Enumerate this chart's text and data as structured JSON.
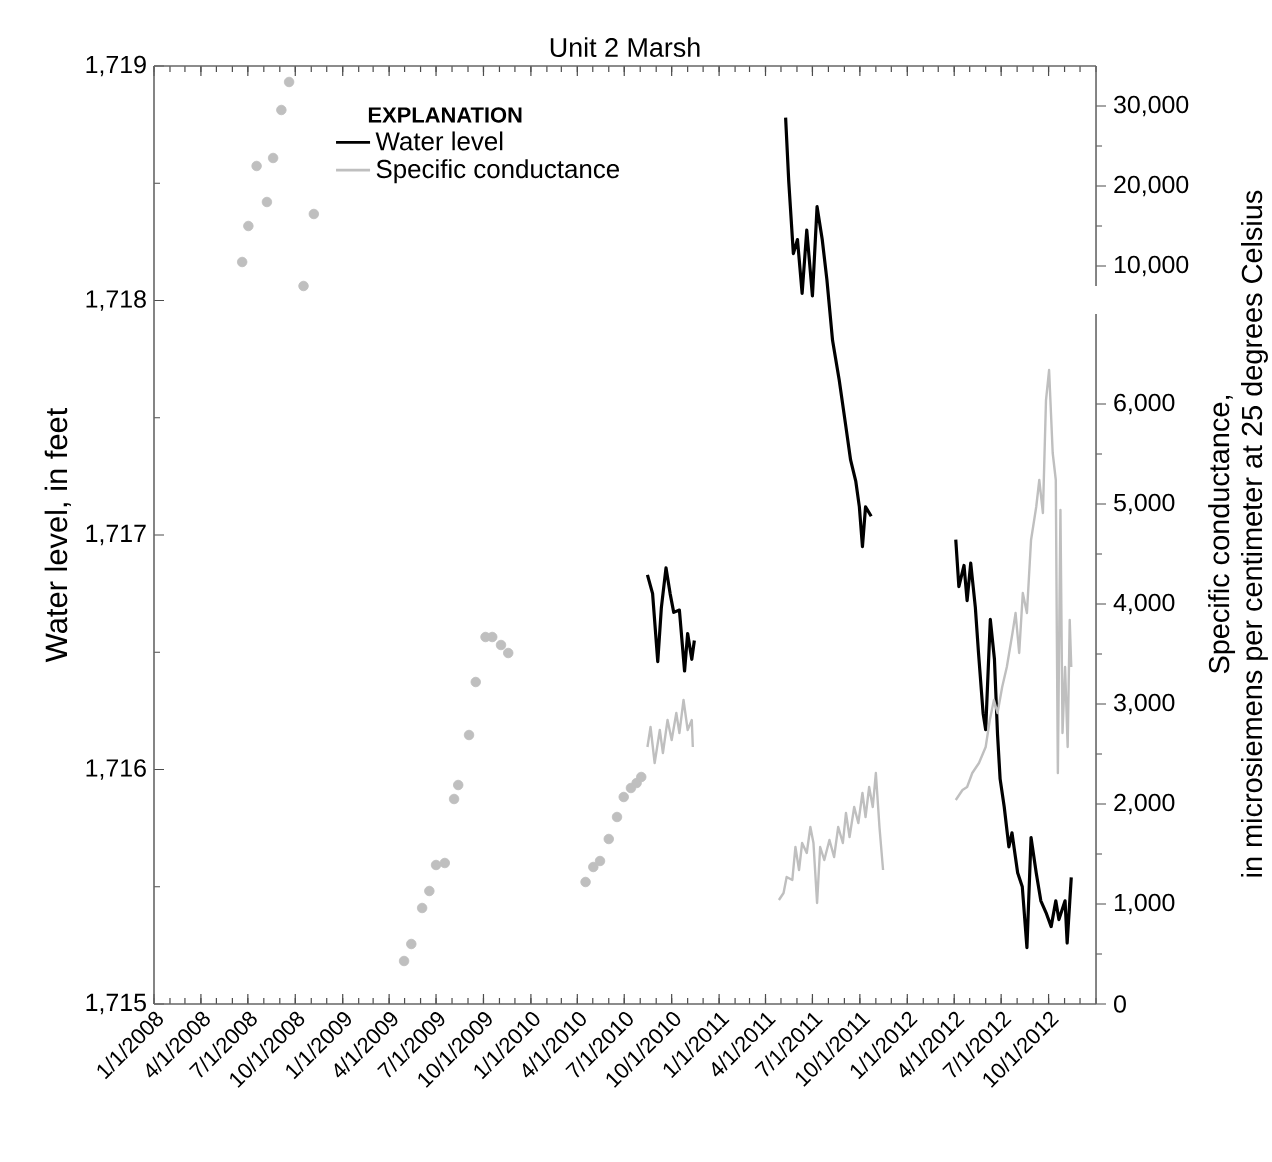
{
  "chart_data": {
    "type": "line",
    "title": "Unit 2 Marsh",
    "ylabel": "Water level, in feet",
    "y2label": "Specific conductance, in microsiemens per centimeter at 25 degrees Celsius",
    "legend_title": "EXPLANATION",
    "legend": "top left",
    "xlim": [
      "2008-01-01",
      "2013-01-01"
    ],
    "xticks": [
      {
        "value": "2008-01-01",
        "label": "1/1/2008"
      },
      {
        "value": "2008-04-01",
        "label": "4/1/2008"
      },
      {
        "value": "2008-07-01",
        "label": "7/1/2008"
      },
      {
        "value": "2008-10-01",
        "label": "10/1/2008"
      },
      {
        "value": "2009-01-01",
        "label": "1/1/2009"
      },
      {
        "value": "2009-04-01",
        "label": "4/1/2009"
      },
      {
        "value": "2009-07-01",
        "label": "7/1/2009"
      },
      {
        "value": "2009-10-01",
        "label": "10/1/2009"
      },
      {
        "value": "2010-01-01",
        "label": "1/1/2010"
      },
      {
        "value": "2010-04-01",
        "label": "4/1/2010"
      },
      {
        "value": "2010-07-01",
        "label": "7/1/2010"
      },
      {
        "value": "2010-10-01",
        "label": "10/1/2010"
      },
      {
        "value": "2011-01-01",
        "label": "1/1/2011"
      },
      {
        "value": "2011-04-01",
        "label": "4/1/2011"
      },
      {
        "value": "2011-07-01",
        "label": "7/1/2011"
      },
      {
        "value": "2011-10-01",
        "label": "10/1/2011"
      },
      {
        "value": "2012-01-01",
        "label": "1/1/2012"
      },
      {
        "value": "2012-04-01",
        "label": "4/1/2012"
      },
      {
        "value": "2012-07-01",
        "label": "7/1/2012"
      },
      {
        "value": "2012-10-01",
        "label": "10/1/2012"
      }
    ],
    "ylim": [
      1715,
      1719
    ],
    "yticks": [
      {
        "value": 1715,
        "label": "1,715"
      },
      {
        "value": 1716,
        "label": "1,716"
      },
      {
        "value": 1717,
        "label": "1,717"
      },
      {
        "value": 1718,
        "label": "1,718"
      },
      {
        "value": 1719,
        "label": "1,719"
      }
    ],
    "y2lim": [
      0,
      6900
    ],
    "y2ticks": [
      0,
      {
        "value": 1000,
        "label": "1,000"
      },
      {
        "value": 2000,
        "label": "2,000"
      },
      {
        "value": 3000,
        "label": "3,000"
      },
      {
        "value": 4000,
        "label": "4,000"
      },
      {
        "value": 5000,
        "label": "5,000"
      },
      {
        "value": 6000,
        "label": "6,000"
      }
    ],
    "y3lim": [
      7500,
      35000
    ],
    "y3ticks": [
      {
        "value": 10000,
        "label": "10,000"
      },
      {
        "value": 20000,
        "label": "20,000"
      },
      {
        "value": 30000,
        "label": "30,000"
      }
    ],
    "series": [
      {
        "name": "Water level",
        "color": "#000000",
        "x": [
          "2010-08-15",
          "2010-08-25",
          "2010-09-04",
          "2010-09-11",
          "2010-09-20",
          "2010-09-28",
          "2010-10-05",
          "2010-10-16",
          "2010-10-26",
          "2010-11-01",
          "2010-11-09",
          "2010-11-14",
          "2011-01-01",
          "2011-05-10",
          "2011-05-16",
          "2011-05-25",
          "2011-06-02",
          "2011-06-11",
          "2011-06-20",
          "2011-07-01",
          "2011-07-10",
          "2011-07-20",
          "2011-07-29",
          "2011-08-09",
          "2011-08-22",
          "2011-09-04",
          "2011-09-13",
          "2011-09-23",
          "2011-09-30",
          "2011-10-06",
          "2011-10-12",
          "2011-10-23",
          "2012-01-01",
          "2012-04-04",
          "2012-04-10",
          "2012-04-20",
          "2012-04-26",
          "2012-05-03",
          "2012-05-12",
          "2012-05-18",
          "2012-05-27",
          "2012-06-01",
          "2012-06-10",
          "2012-06-18",
          "2012-06-24",
          "2012-06-29",
          "2012-07-07",
          "2012-07-16",
          "2012-07-22",
          "2012-08-02",
          "2012-08-11",
          "2012-08-20",
          "2012-08-28",
          "2012-09-07",
          "2012-09-16",
          "2012-09-26",
          "2012-10-06",
          "2012-10-15",
          "2012-10-21",
          "2012-11-02",
          "2012-11-06",
          "2012-11-14"
        ],
        "values": [
          1716.83,
          1716.75,
          1716.46,
          1716.69,
          1716.86,
          1716.75,
          1716.67,
          1716.68,
          1716.42,
          1716.58,
          1716.47,
          1716.55,
          null,
          1718.78,
          1718.51,
          1718.2,
          1718.26,
          1718.03,
          1718.3,
          1718.02,
          1718.4,
          1718.26,
          1718.09,
          1717.83,
          1717.66,
          1717.46,
          1717.32,
          1717.23,
          1717.12,
          1716.95,
          1717.12,
          1717.08,
          null,
          1716.98,
          1716.78,
          1716.87,
          1716.72,
          1716.88,
          1716.69,
          1716.5,
          1716.24,
          1716.17,
          1716.64,
          1716.47,
          1716.15,
          1715.96,
          1715.84,
          1715.67,
          1715.73,
          1715.56,
          1715.5,
          1715.24,
          1715.71,
          1715.56,
          1715.44,
          1715.39,
          1715.33,
          1715.44,
          1715.36,
          1715.44,
          1715.26,
          1715.54
        ]
      },
      {
        "name": "Specific conductance",
        "axis": "y2",
        "color": "#bfbfbf",
        "x": [
          "2010-08-15",
          "2010-08-21",
          "2010-08-29",
          "2010-09-08",
          "2010-09-14",
          "2010-09-23",
          "2010-10-01",
          "2010-10-10",
          "2010-10-16",
          "2010-10-24",
          "2010-11-01",
          "2010-11-09",
          "2010-11-11",
          "2011-01-01",
          "2011-04-27",
          "2011-05-06",
          "2011-05-12",
          "2011-05-23",
          "2011-05-29",
          "2011-06-05",
          "2011-06-11",
          "2011-06-20",
          "2011-06-27",
          "2011-07-03",
          "2011-07-10",
          "2011-07-16",
          "2011-07-24",
          "2011-08-03",
          "2011-08-12",
          "2011-08-20",
          "2011-08-29",
          "2011-09-04",
          "2011-09-11",
          "2011-09-20",
          "2011-09-28",
          "2011-10-06",
          "2011-10-12",
          "2011-10-19",
          "2011-10-26",
          "2011-11-01",
          "2011-11-08",
          "2011-11-15",
          "2012-01-01",
          "2012-04-04",
          "2012-04-17",
          "2012-04-26",
          "2012-05-06",
          "2012-05-19",
          "2012-06-01",
          "2012-06-09",
          "2012-06-17",
          "2012-06-24",
          "2012-07-03",
          "2012-07-12",
          "2012-07-23",
          "2012-07-29",
          "2012-08-05",
          "2012-08-12",
          "2012-08-20",
          "2012-08-28",
          "2012-09-07",
          "2012-09-13",
          "2012-09-20",
          "2012-09-26",
          "2012-10-02",
          "2012-10-09",
          "2012-10-15",
          "2012-10-17",
          "2012-10-19",
          "2012-10-24",
          "2012-10-28",
          "2012-11-02",
          "2012-11-07",
          "2012-11-11",
          "2012-11-14"
        ],
        "values": [
          2570,
          2770,
          2410,
          2740,
          2510,
          2840,
          2640,
          2910,
          2710,
          3040,
          2740,
          2840,
          2570,
          null,
          1040,
          1110,
          1270,
          1240,
          1570,
          1340,
          1610,
          1510,
          1770,
          1610,
          1010,
          1570,
          1440,
          1640,
          1470,
          1770,
          1610,
          1910,
          1670,
          1970,
          1810,
          2110,
          1870,
          2170,
          1970,
          2310,
          1770,
          1340,
          null,
          2040,
          2140,
          2170,
          2310,
          2410,
          2570,
          2840,
          3040,
          2910,
          3170,
          3370,
          3710,
          3910,
          3510,
          4110,
          3910,
          4640,
          4970,
          5240,
          4910,
          6040,
          6340,
          5510,
          5240,
          3710,
          2310,
          4940,
          2710,
          3370,
          2570,
          3840,
          3370
        ]
      },
      {
        "type": "scatter",
        "axis": "y2",
        "marker": "circle",
        "color": "#bfbfbf",
        "x": [
          "2009-04-30",
          "2009-05-14",
          "2009-06-04",
          "2009-06-18",
          "2009-07-01",
          "2009-07-18",
          "2009-08-05",
          "2009-08-13",
          "2009-09-03",
          "2009-09-16",
          "2009-10-05",
          "2009-10-18",
          "2009-11-04",
          "2009-11-18",
          "2010-04-17",
          "2010-05-02",
          "2010-05-15",
          "2010-06-01",
          "2010-06-17",
          "2010-06-30",
          "2010-07-14",
          "2010-07-25",
          "2010-08-03"
        ],
        "values": [
          430,
          600,
          960,
          1130,
          1390,
          1410,
          2050,
          2190,
          2690,
          3220,
          3670,
          3670,
          3590,
          3510,
          1220,
          1370,
          1430,
          1650,
          1870,
          2070,
          2160,
          2210,
          2270
        ]
      },
      {
        "type": "scatter",
        "axis": "y3",
        "marker": "circle",
        "color": "#bfbfbf",
        "x": [
          "2008-06-20",
          "2008-07-02",
          "2008-07-18",
          "2008-08-07",
          "2008-08-19",
          "2008-09-04",
          "2008-09-19",
          "2008-10-17",
          "2008-11-06"
        ],
        "values": [
          10500,
          15000,
          22500,
          18000,
          23500,
          29500,
          33000,
          7500,
          16500
        ]
      }
    ]
  }
}
